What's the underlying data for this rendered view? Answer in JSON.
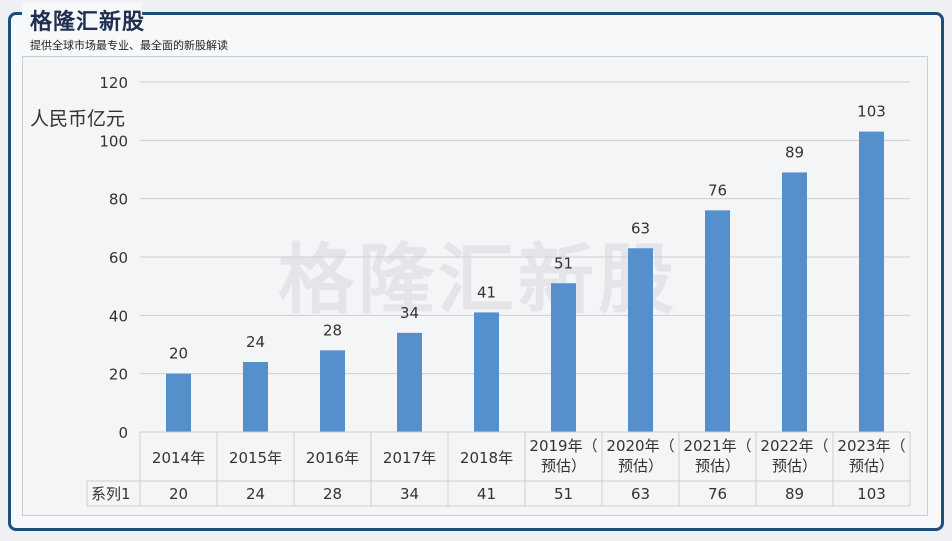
{
  "brand": {
    "title": "格隆汇新股",
    "subtitle": "提供全球市场最专业、最全面的新股解读"
  },
  "watermark": "格隆汇新股",
  "chart_data": {
    "type": "bar",
    "unit_label": "人民币亿元",
    "categories": [
      "2014年",
      "2015年",
      "2016年",
      "2017年",
      "2018年",
      "2019年（预估）",
      "2020年（预估）",
      "2021年（预估）",
      "2022年（预估）",
      "2023年（预估）"
    ],
    "category_lines": [
      [
        "2014年"
      ],
      [
        "2015年"
      ],
      [
        "2016年"
      ],
      [
        "2017年"
      ],
      [
        "2018年"
      ],
      [
        "2019年（",
        "预估）"
      ],
      [
        "2020年（",
        "预估）"
      ],
      [
        "2021年（",
        "预估）"
      ],
      [
        "2022年（",
        "预估）"
      ],
      [
        "2023年（",
        "预估）"
      ]
    ],
    "series": [
      {
        "name": "系列1",
        "values": [
          20,
          24,
          28,
          34,
          41,
          51,
          63,
          76,
          89,
          103
        ]
      }
    ],
    "ylim": [
      0,
      120
    ],
    "yticks": [
      0,
      20,
      40,
      60,
      80,
      100,
      120
    ],
    "grid": true,
    "data_table": true,
    "colors": {
      "bar": "#5590cc",
      "grid": "#cfcfcf",
      "text": "#333333"
    }
  }
}
